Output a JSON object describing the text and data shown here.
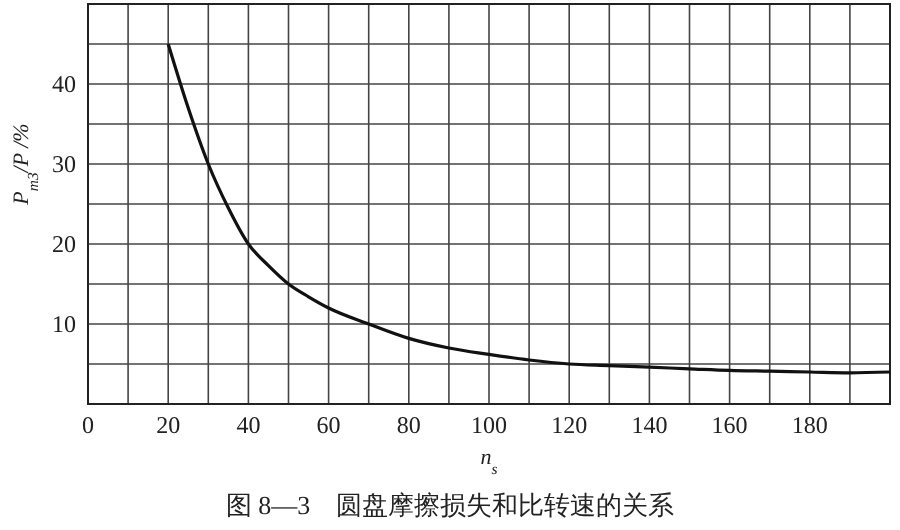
{
  "chart_data": {
    "type": "line",
    "title": "图 8—3　圆盘摩擦损失和比转速的关系",
    "xlabel": "n$_{s}$",
    "ylabel": "P$_{m3}$/P /%",
    "x": [
      20,
      25,
      30,
      35,
      40,
      45,
      50,
      55,
      60,
      70,
      80,
      90,
      100,
      110,
      120,
      130,
      140,
      150,
      160,
      170,
      180,
      190,
      200
    ],
    "series": [
      {
        "color": "#111111",
        "values": [
          45,
          37,
          30,
          24.5,
          20,
          17.3,
          15,
          13.4,
          12,
          10,
          8.2,
          7,
          6.2,
          5.5,
          5,
          4.8,
          4.6,
          4.4,
          4.2,
          4.1,
          4,
          3.9,
          4
        ]
      }
    ],
    "xlim": [
      0,
      200
    ],
    "ylim": [
      0,
      50
    ],
    "xticks": [
      0,
      {
        "value": 10,
        "label": null
      },
      20,
      {
        "value": 30,
        "label": null
      },
      40,
      {
        "value": 50,
        "label": null
      },
      60,
      {
        "value": 70,
        "label": null
      },
      80,
      {
        "value": 90,
        "label": null
      },
      100,
      {
        "value": 110,
        "label": null
      },
      120,
      {
        "value": 130,
        "label": null
      },
      140,
      {
        "value": 150,
        "label": null
      },
      160,
      {
        "value": 170,
        "label": null
      },
      180,
      {
        "value": 190,
        "label": null
      },
      {
        "value": 200,
        "label": null
      }
    ],
    "yticks": [
      {
        "value": 0,
        "label": null
      },
      {
        "value": 5,
        "label": null
      },
      10,
      {
        "value": 15,
        "label": null
      },
      20,
      {
        "value": 25,
        "label": null
      },
      30,
      {
        "value": 35,
        "label": null
      },
      40,
      {
        "value": 45,
        "label": null
      },
      {
        "value": 50,
        "label": null
      }
    ],
    "grid": true,
    "marker": "none",
    "line_style": "solid"
  }
}
